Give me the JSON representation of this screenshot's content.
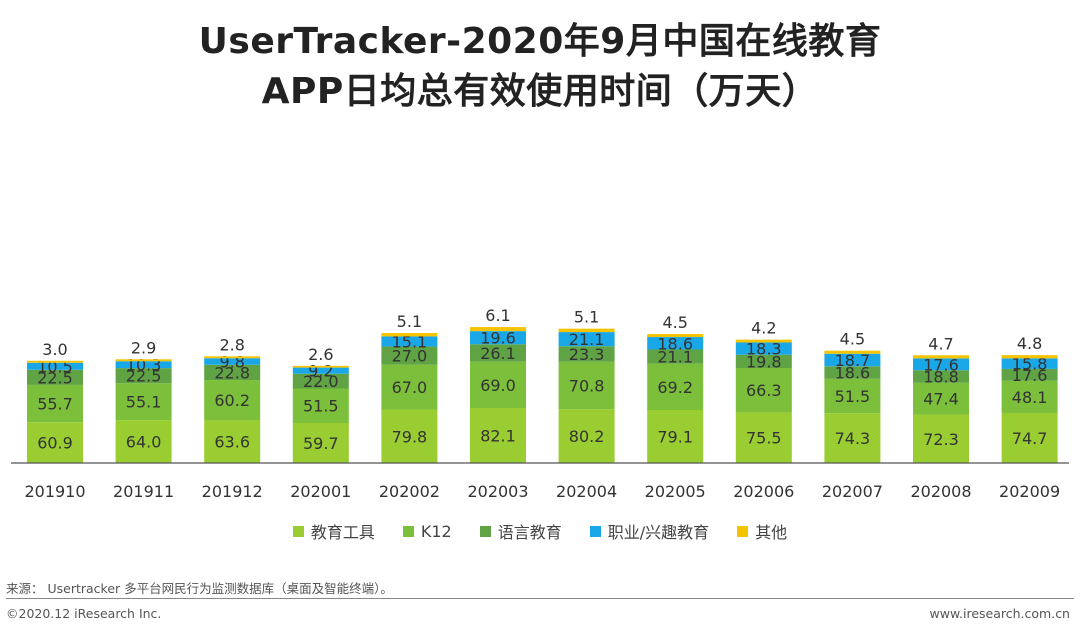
{
  "title_line1": "UserTracker-2020年9月中国在线教育",
  "title_line2": "APP日均总有效使用时间（万天）",
  "chart_data": {
    "type": "bar",
    "stacked": true,
    "categories": [
      "201910",
      "201911",
      "201912",
      "202001",
      "202002",
      "202003",
      "202004",
      "202005",
      "202006",
      "202007",
      "202008",
      "202009"
    ],
    "series": [
      {
        "name": "教育工具",
        "color": "#9ACD32",
        "values": [
          60.9,
          64.0,
          63.6,
          59.7,
          79.8,
          82.1,
          80.2,
          79.1,
          75.5,
          74.3,
          72.3,
          74.7
        ]
      },
      {
        "name": "K12",
        "color": "#7BBF3A",
        "values": [
          55.7,
          55.1,
          60.2,
          51.5,
          67.0,
          69.0,
          70.8,
          69.2,
          66.3,
          51.5,
          47.4,
          48.1
        ]
      },
      {
        "name": "语言教育",
        "color": "#5FA344",
        "values": [
          22.5,
          22.5,
          22.8,
          22.0,
          27.0,
          26.1,
          23.3,
          21.1,
          19.8,
          18.6,
          18.8,
          17.6
        ]
      },
      {
        "name": "职业/兴趣教育",
        "color": "#1AA7E8",
        "values": [
          10.5,
          10.3,
          9.8,
          9.2,
          15.1,
          19.6,
          21.1,
          18.6,
          18.3,
          18.7,
          17.6,
          15.8
        ]
      },
      {
        "name": "其他",
        "color": "#F5C400",
        "values": [
          3.0,
          2.9,
          2.8,
          2.6,
          5.1,
          6.1,
          5.1,
          4.5,
          4.2,
          4.5,
          4.7,
          4.8
        ]
      }
    ],
    "legend_position": "bottom",
    "grid": false
  },
  "footer": {
    "source": "来源： Usertracker 多平台网民行为监测数据库（桌面及智能终端）。",
    "copyright": "©2020.12 iResearch Inc.",
    "website": "www.iresearch.com.cn"
  }
}
